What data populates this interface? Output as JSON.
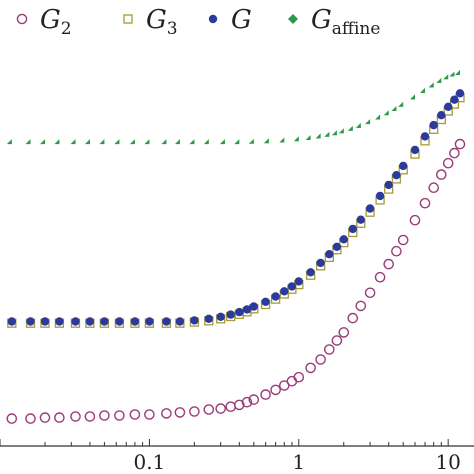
{
  "chart_data": {
    "type": "scatter",
    "x_scale": "log",
    "xlim": [
      0.01,
      12
    ],
    "x_tick_labels": [
      "0.1",
      "1",
      "10"
    ],
    "x_tick_values": [
      0.1,
      1,
      10
    ],
    "y_scale": "log",
    "ylim": [
      0.7,
      45
    ],
    "grid": false,
    "legend_placement": "top",
    "legend": [
      {
        "main": "G",
        "sub": "2",
        "marker": "open-circle",
        "color": "#9c3b7a"
      },
      {
        "main": "G",
        "sub": "3",
        "marker": "open-square",
        "color": "#a89a3a"
      },
      {
        "main": "G",
        "sub": "",
        "marker": "filled-circle",
        "color": "#2b3a9b"
      },
      {
        "main": "G",
        "sub": "affine",
        "marker": "filled-diamond",
        "color": "#2e9a48"
      }
    ],
    "series": [
      {
        "name": "G2",
        "marker": "open-circle",
        "color": "#9c3b7a",
        "x": [
          0.012,
          0.016,
          0.02,
          0.025,
          0.032,
          0.04,
          0.05,
          0.063,
          0.08,
          0.1,
          0.13,
          0.16,
          0.2,
          0.25,
          0.3,
          0.35,
          0.4,
          0.45,
          0.5,
          0.6,
          0.7,
          0.8,
          0.9,
          1.0,
          1.2,
          1.4,
          1.6,
          1.8,
          2.0,
          2.3,
          2.6,
          3.0,
          3.5,
          4.0,
          4.5,
          5.0,
          6.0,
          7.0,
          8.0,
          9.0,
          10.0,
          11.0,
          12.0
        ],
        "y": [
          0.8,
          0.8,
          0.81,
          0.81,
          0.82,
          0.82,
          0.83,
          0.83,
          0.84,
          0.84,
          0.85,
          0.86,
          0.87,
          0.89,
          0.9,
          0.92,
          0.94,
          0.97,
          1.0,
          1.06,
          1.12,
          1.18,
          1.24,
          1.3,
          1.45,
          1.6,
          1.8,
          2.0,
          2.2,
          2.6,
          3.0,
          3.5,
          4.2,
          4.9,
          5.7,
          6.5,
          8.2,
          10.0,
          12.0,
          14.0,
          16.0,
          18.0,
          20.0
        ]
      },
      {
        "name": "G3",
        "marker": "open-square",
        "color": "#a89a3a",
        "x": [
          0.012,
          0.016,
          0.02,
          0.025,
          0.032,
          0.04,
          0.05,
          0.063,
          0.08,
          0.1,
          0.13,
          0.16,
          0.2,
          0.25,
          0.3,
          0.35,
          0.4,
          0.45,
          0.5,
          0.6,
          0.7,
          0.8,
          0.9,
          1.0,
          1.2,
          1.4,
          1.6,
          1.8,
          2.0,
          2.3,
          2.6,
          3.0,
          3.5,
          4.0,
          4.5,
          5.0,
          6.0,
          7.0,
          8.0,
          9.0,
          10.0,
          11.0,
          12.0
        ],
        "y": [
          2.45,
          2.45,
          2.45,
          2.45,
          2.45,
          2.45,
          2.45,
          2.45,
          2.45,
          2.45,
          2.45,
          2.45,
          2.48,
          2.52,
          2.58,
          2.65,
          2.72,
          2.8,
          2.9,
          3.05,
          3.25,
          3.45,
          3.65,
          3.85,
          4.3,
          4.8,
          5.3,
          5.8,
          6.3,
          7.1,
          7.9,
          9.0,
          10.4,
          11.8,
          13.3,
          14.8,
          17.8,
          20.8,
          23.8,
          26.7,
          29.5,
          32.0,
          34.5
        ]
      },
      {
        "name": "G",
        "marker": "filled-circle",
        "color": "#2b3a9b",
        "x": [
          0.012,
          0.016,
          0.02,
          0.025,
          0.032,
          0.04,
          0.05,
          0.063,
          0.08,
          0.1,
          0.13,
          0.16,
          0.2,
          0.25,
          0.3,
          0.35,
          0.4,
          0.45,
          0.5,
          0.6,
          0.7,
          0.8,
          0.9,
          1.0,
          1.2,
          1.4,
          1.6,
          1.8,
          2.0,
          2.3,
          2.6,
          3.0,
          3.5,
          4.0,
          4.5,
          5.0,
          6.0,
          7.0,
          8.0,
          9.0,
          10.0,
          11.0,
          12.0
        ],
        "y": [
          2.5,
          2.5,
          2.5,
          2.5,
          2.5,
          2.5,
          2.5,
          2.5,
          2.5,
          2.5,
          2.5,
          2.5,
          2.53,
          2.58,
          2.64,
          2.71,
          2.79,
          2.88,
          2.98,
          3.15,
          3.35,
          3.56,
          3.77,
          4.0,
          4.45,
          4.97,
          5.5,
          6.0,
          6.55,
          7.4,
          8.25,
          9.4,
          10.9,
          12.4,
          13.9,
          15.5,
          18.7,
          21.9,
          25.0,
          28.1,
          31.0,
          33.7,
          36.3
        ]
      },
      {
        "name": "G_affine",
        "marker": "filled-diamond",
        "color": "#2e9a48",
        "x": [
          0.012,
          0.016,
          0.02,
          0.025,
          0.032,
          0.04,
          0.05,
          0.063,
          0.08,
          0.1,
          0.13,
          0.16,
          0.2,
          0.25,
          0.32,
          0.4,
          0.5,
          0.63,
          0.8,
          1.0,
          1.2,
          1.4,
          1.6,
          1.8,
          2.0,
          2.3,
          2.6,
          3.0,
          3.5,
          4.0,
          4.5,
          5.0,
          6.0,
          7.0,
          8.0,
          9.0,
          10.0,
          11.0,
          12.0
        ],
        "y": [
          20.0,
          20.0,
          20.0,
          20.0,
          20.0,
          20.0,
          20.0,
          20.0,
          20.0,
          20.0,
          20.0,
          20.0,
          20.0,
          20.0,
          20.0,
          20.0,
          20.1,
          20.2,
          20.4,
          20.7,
          21.0,
          21.4,
          21.8,
          22.2,
          22.7,
          23.4,
          24.2,
          25.3,
          26.7,
          28.1,
          29.5,
          31.0,
          33.8,
          36.5,
          38.9,
          41.0,
          42.8,
          44.2,
          45.0
        ]
      }
    ]
  }
}
